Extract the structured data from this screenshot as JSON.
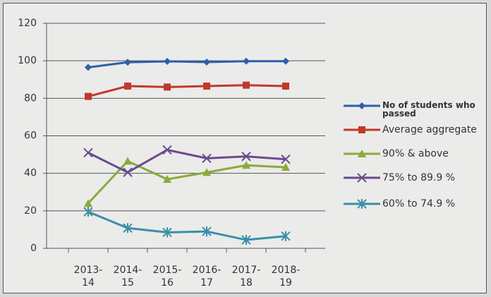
{
  "chart_data": {
    "type": "line",
    "categories": [
      "2013-14",
      "2014-15",
      "2015-16",
      "2016-17",
      "2017-18",
      "2018-19"
    ],
    "series": [
      {
        "name": "No of students who passed",
        "color": "#2e5fa8",
        "marker": "diamond",
        "values": [
          96.5,
          99.2,
          99.7,
          99.3,
          99.8,
          99.8
        ]
      },
      {
        "name": "Average aggregate",
        "color": "#c0392b",
        "marker": "square",
        "values": [
          81,
          86.5,
          86,
          86.5,
          87,
          86.5
        ]
      },
      {
        "name": "90% & above",
        "color": "#8aaa3a",
        "marker": "triangle",
        "values": [
          24,
          46.5,
          36.8,
          40.5,
          44.3,
          43.2
        ]
      },
      {
        "name": "75% to 89.9 %",
        "color": "#6a4a8c",
        "marker": "x",
        "values": [
          51,
          40.5,
          52.5,
          48,
          49,
          47.5
        ]
      },
      {
        "name": "60% to 74.9 %",
        "color": "#3a8fa8",
        "marker": "star",
        "values": [
          19.5,
          10.8,
          8.5,
          9,
          4.5,
          6.5
        ]
      }
    ],
    "ylim": [
      0,
      120
    ],
    "yticks": [
      0,
      20,
      40,
      60,
      80,
      100,
      120
    ],
    "grid": true,
    "legend": "right"
  }
}
